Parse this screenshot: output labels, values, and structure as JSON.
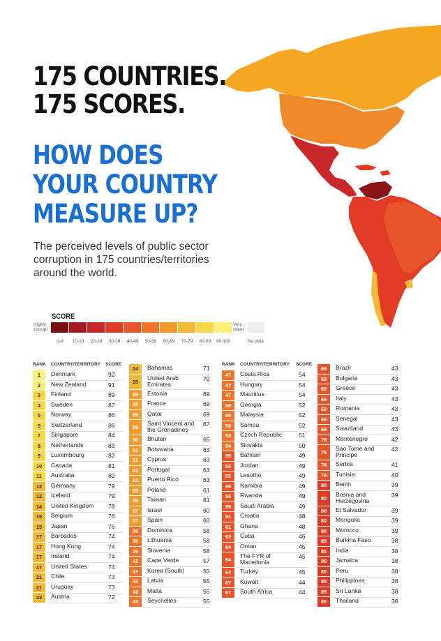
{
  "headline": {
    "line1": "175 COUNTRIES.",
    "line2": "175 SCORES."
  },
  "question": {
    "line1": "HOW DOES",
    "line2": "YOUR COUNTRY",
    "line3": "MEASURE UP?"
  },
  "subtitle": "The perceived levels of public sector corruption in 175 countries/territories around the world.",
  "legend": {
    "title": "SCORE",
    "low_label": "Highly corrupt",
    "high_label": "Very clean",
    "no_data": "No data",
    "ranges": [
      "0-9",
      "10-19",
      "20-29",
      "30-39",
      "40-49",
      "50-59",
      "60-69",
      "70-79",
      "80-89",
      "90-100"
    ],
    "colors": [
      "#7a0f12",
      "#a51a1e",
      "#c8282a",
      "#de3a24",
      "#e8552a",
      "#ef7429",
      "#f29a2e",
      "#f5b93a",
      "#f8d84a",
      "#fdf07a"
    ]
  },
  "columns": [
    {
      "headers": {
        "rank": "RANK",
        "country": "COUNTRY/TERRITORY",
        "score": "SCORE"
      },
      "rows": [
        {
          "rank": "1",
          "country": "Denmark",
          "score": "92"
        },
        {
          "rank": "2",
          "country": "New Zealand",
          "score": "91"
        },
        {
          "rank": "3",
          "country": "Finland",
          "score": "89"
        },
        {
          "rank": "4",
          "country": "Sweden",
          "score": "87"
        },
        {
          "rank": "5",
          "country": "Norway",
          "score": "86"
        },
        {
          "rank": "5",
          "country": "Switzerland",
          "score": "86"
        },
        {
          "rank": "7",
          "country": "Singapore",
          "score": "84"
        },
        {
          "rank": "8",
          "country": "Netherlands",
          "score": "83"
        },
        {
          "rank": "9",
          "country": "Luxembourg",
          "score": "82"
        },
        {
          "rank": "10",
          "country": "Canada",
          "score": "81"
        },
        {
          "rank": "11",
          "country": "Australia",
          "score": "80"
        },
        {
          "rank": "12",
          "country": "Germany",
          "score": "79"
        },
        {
          "rank": "12",
          "country": "Iceland",
          "score": "79"
        },
        {
          "rank": "14",
          "country": "United Kingdom",
          "score": "78"
        },
        {
          "rank": "15",
          "country": "Belgium",
          "score": "76"
        },
        {
          "rank": "15",
          "country": "Japan",
          "score": "76"
        },
        {
          "rank": "17",
          "country": "Barbados",
          "score": "74"
        },
        {
          "rank": "17",
          "country": "Hong Kong",
          "score": "74"
        },
        {
          "rank": "17",
          "country": "Ireland",
          "score": "74"
        },
        {
          "rank": "17",
          "country": "United States",
          "score": "74"
        },
        {
          "rank": "21",
          "country": "Chile",
          "score": "73"
        },
        {
          "rank": "21",
          "country": "Uruguay",
          "score": "73"
        },
        {
          "rank": "23",
          "country": "Austria",
          "score": "72"
        }
      ]
    },
    {
      "rows": [
        {
          "rank": "24",
          "country": "Bahamas",
          "score": "71"
        },
        {
          "rank": "25",
          "country": "United Arab Emirates",
          "score": "70"
        },
        {
          "rank": "26",
          "country": "Estonia",
          "score": "69"
        },
        {
          "rank": "26",
          "country": "France",
          "score": "69"
        },
        {
          "rank": "26",
          "country": "Qatar",
          "score": "69"
        },
        {
          "rank": "29",
          "country": "Saint Vincent and the Grenadines",
          "score": "67"
        },
        {
          "rank": "30",
          "country": "Bhutan",
          "score": "65"
        },
        {
          "rank": "31",
          "country": "Botswana",
          "score": "63"
        },
        {
          "rank": "31",
          "country": "Cyprus",
          "score": "63"
        },
        {
          "rank": "31",
          "country": "Portugal",
          "score": "63"
        },
        {
          "rank": "31",
          "country": "Puerto Rico",
          "score": "63"
        },
        {
          "rank": "35",
          "country": "Poland",
          "score": "61"
        },
        {
          "rank": "35",
          "country": "Taiwan",
          "score": "61"
        },
        {
          "rank": "37",
          "country": "Israel",
          "score": "60"
        },
        {
          "rank": "37",
          "country": "Spain",
          "score": "60"
        },
        {
          "rank": "39",
          "country": "Dominica",
          "score": "58"
        },
        {
          "rank": "39",
          "country": "Lithuania",
          "score": "58"
        },
        {
          "rank": "39",
          "country": "Slovenia",
          "score": "58"
        },
        {
          "rank": "42",
          "country": "Cape Verde",
          "score": "57"
        },
        {
          "rank": "43",
          "country": "Korea (South)",
          "score": "55"
        },
        {
          "rank": "43",
          "country": "Latvia",
          "score": "55"
        },
        {
          "rank": "43",
          "country": "Malta",
          "score": "55"
        },
        {
          "rank": "43",
          "country": "Seychelles",
          "score": "55"
        }
      ]
    },
    {
      "headers": {
        "rank": "RANK",
        "country": "COUNTRY/TERRITORY",
        "score": "SCORE"
      },
      "rows": [
        {
          "rank": "47",
          "country": "Costa Rica",
          "score": "54"
        },
        {
          "rank": "47",
          "country": "Hungary",
          "score": "54"
        },
        {
          "rank": "47",
          "country": "Mauritius",
          "score": "54"
        },
        {
          "rank": "50",
          "country": "Georgia",
          "score": "52"
        },
        {
          "rank": "50",
          "country": "Malaysia",
          "score": "52"
        },
        {
          "rank": "50",
          "country": "Samoa",
          "score": "52"
        },
        {
          "rank": "53",
          "country": "Czech Republic",
          "score": "51"
        },
        {
          "rank": "54",
          "country": "Slovakia",
          "score": "50"
        },
        {
          "rank": "55",
          "country": "Bahrain",
          "score": "49"
        },
        {
          "rank": "55",
          "country": "Jordan",
          "score": "49"
        },
        {
          "rank": "55",
          "country": "Lesotho",
          "score": "49"
        },
        {
          "rank": "55",
          "country": "Namibia",
          "score": "49"
        },
        {
          "rank": "55",
          "country": "Rwanda",
          "score": "49"
        },
        {
          "rank": "55",
          "country": "Saudi Arabia",
          "score": "49"
        },
        {
          "rank": "61",
          "country": "Croatia",
          "score": "48"
        },
        {
          "rank": "61",
          "country": "Ghana",
          "score": "48"
        },
        {
          "rank": "63",
          "country": "Cuba",
          "score": "46"
        },
        {
          "rank": "64",
          "country": "Oman",
          "score": "45"
        },
        {
          "rank": "64",
          "country": "The FYR of Macedonia",
          "score": "45"
        },
        {
          "rank": "64",
          "country": "Turkey",
          "score": "45"
        },
        {
          "rank": "67",
          "country": "Kuwait",
          "score": "44"
        },
        {
          "rank": "67",
          "country": "South Africa",
          "score": "44"
        }
      ]
    },
    {
      "rows": [
        {
          "rank": "69",
          "country": "Brazil",
          "score": "43"
        },
        {
          "rank": "69",
          "country": "Bulgaria",
          "score": "43"
        },
        {
          "rank": "69",
          "country": "Greece",
          "score": "43"
        },
        {
          "rank": "69",
          "country": "Italy",
          "score": "43"
        },
        {
          "rank": "69",
          "country": "Romania",
          "score": "43"
        },
        {
          "rank": "69",
          "country": "Senegal",
          "score": "43"
        },
        {
          "rank": "69",
          "country": "Swaziland",
          "score": "43"
        },
        {
          "rank": "76",
          "country": "Montenegro",
          "score": "42"
        },
        {
          "rank": "76",
          "country": "Sao Tome and Principe",
          "score": "42"
        },
        {
          "rank": "78",
          "country": "Serbia",
          "score": "41"
        },
        {
          "rank": "79",
          "country": "Tunisia",
          "score": "40"
        },
        {
          "rank": "80",
          "country": "Benin",
          "score": "39"
        },
        {
          "rank": "80",
          "country": "Bosnia and Herzegovina",
          "score": "39"
        },
        {
          "rank": "80",
          "country": "El Salvador",
          "score": "39"
        },
        {
          "rank": "80",
          "country": "Mongolia",
          "score": "39"
        },
        {
          "rank": "80",
          "country": "Morocco",
          "score": "39"
        },
        {
          "rank": "85",
          "country": "Burkina Faso",
          "score": "38"
        },
        {
          "rank": "85",
          "country": "India",
          "score": "38"
        },
        {
          "rank": "85",
          "country": "Jamaica",
          "score": "38"
        },
        {
          "rank": "85",
          "country": "Peru",
          "score": "38"
        },
        {
          "rank": "85",
          "country": "Philippines",
          "score": "38"
        },
        {
          "rank": "85",
          "country": "Sri Lanka",
          "score": "38"
        },
        {
          "rank": "85",
          "country": "Thailand",
          "score": "38"
        }
      ]
    }
  ]
}
